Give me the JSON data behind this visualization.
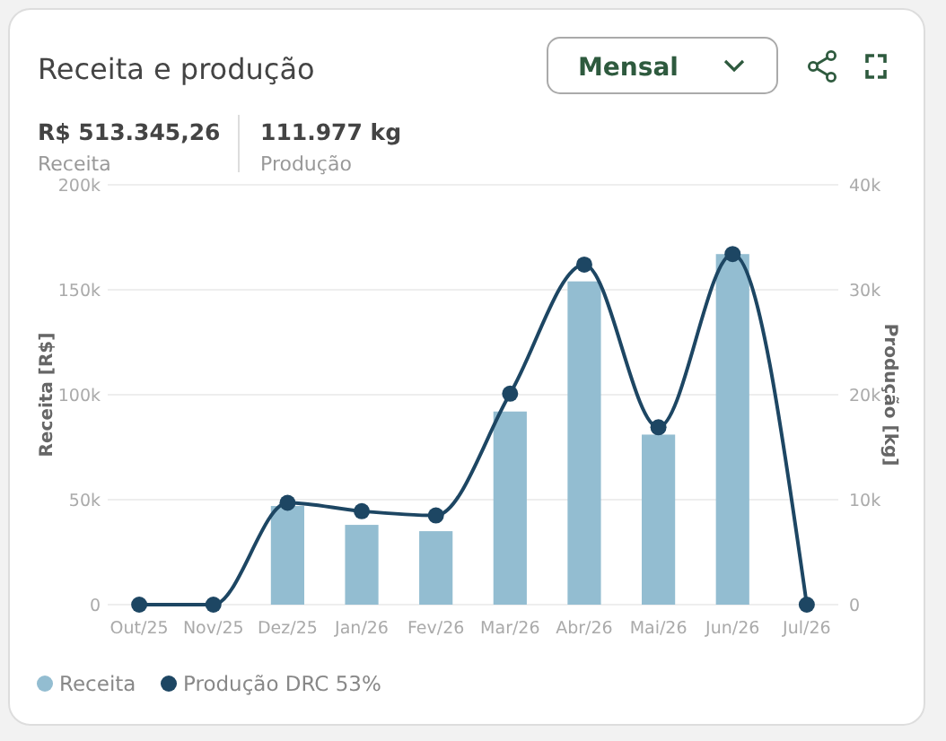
{
  "chart_data": {
    "type": "bar",
    "title": "Receita e produção",
    "annotations": [
      "R$ 513.345,26",
      "Receita",
      "111.977 kg",
      "Produção",
      "Mensal"
    ],
    "categories": [
      "Out/25",
      "Nov/25",
      "Dez/25",
      "Jan/26",
      "Fev/26",
      "Mar/26",
      "Abr/26",
      "Mai/26",
      "Jun/26",
      "Jul/26"
    ],
    "series": [
      {
        "name": "Receita",
        "color": "#93bdd1",
        "values": [
          0,
          0,
          47000,
          38000,
          35000,
          92000,
          154000,
          81000,
          167000,
          0
        ]
      },
      {
        "name": "Produção DRC 53%",
        "type": "line",
        "axis": "y2",
        "color": "#1d4663",
        "marker": "circle",
        "values": [
          0,
          0,
          9700,
          8900,
          8500,
          20100,
          32400,
          16900,
          33400,
          0
        ]
      }
    ],
    "ylabel": "Receita [R$]",
    "y2label": "Produção [kg]",
    "ylim": [
      0,
      200000
    ],
    "yticks": [
      0,
      {
        "value": 50000,
        "label": "50k"
      },
      {
        "value": 100000,
        "label": "100k"
      },
      {
        "value": 150000,
        "label": "150k"
      },
      {
        "value": 200000,
        "label": "200k"
      }
    ],
    "y2lim": [
      0,
      40000
    ],
    "y2ticks": [
      0,
      {
        "value": 10000,
        "label": "10k"
      },
      {
        "value": 20000,
        "label": "20k"
      },
      {
        "value": 30000,
        "label": "30k"
      },
      {
        "value": 40000,
        "label": "40k"
      }
    ],
    "grid": "y",
    "legend": "bottom left",
    "line_style": "solid"
  }
}
